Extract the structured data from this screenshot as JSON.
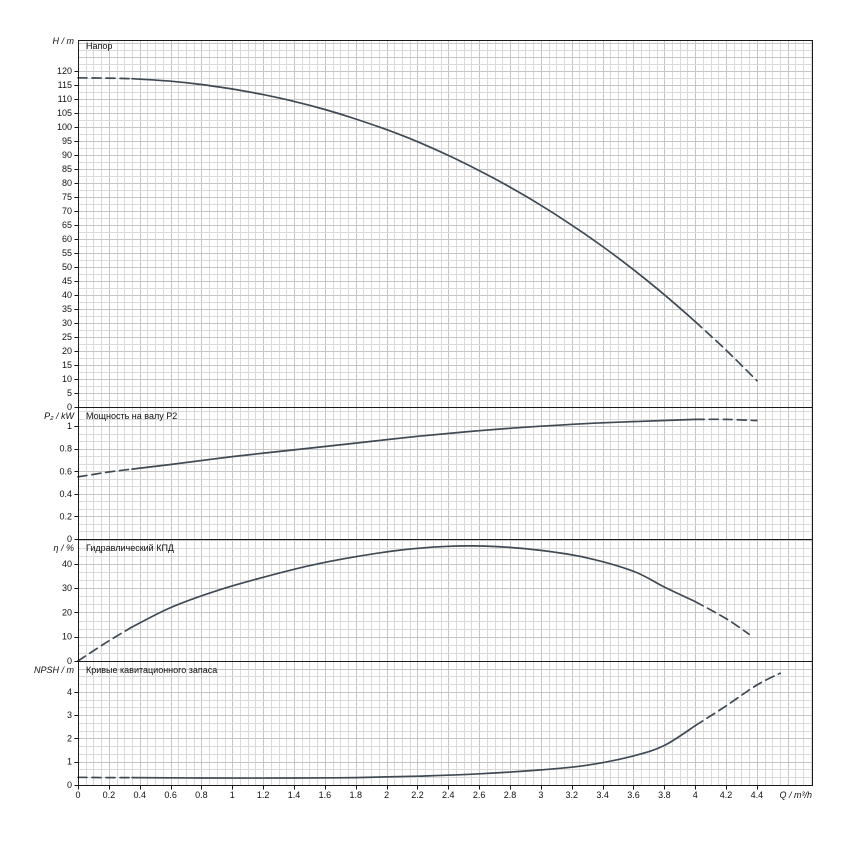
{
  "chart_data": {
    "type": "line",
    "xlabel": "Q / m³/h",
    "xlim": [
      0,
      4.757
    ],
    "x_minor_step": 0.05,
    "xtick_labels": [
      "0",
      "0.2",
      "0.4",
      "0.6",
      "0.8",
      "1",
      "1.2",
      "1.4",
      "1.6",
      "1.8",
      "2",
      "2.2",
      "2.4",
      "2.6",
      "2.8",
      "3",
      "3.2",
      "3.4",
      "3.6",
      "3.8",
      "4",
      "4.2",
      "4.4"
    ],
    "line_color": "#3f4a55",
    "grid_minor_color": "#dadada",
    "grid_major_color": "#c6c6c6",
    "axis_color": "#1a1a1a",
    "grid": true,
    "legend": false,
    "panels": [
      {
        "id": "head",
        "title": "Напор",
        "ylabel": "H / m",
        "ylim": [
          0,
          131
        ],
        "y_minor_step": 2.5,
        "ytick_labels": [
          "0",
          "5",
          "10",
          "15",
          "20",
          "25",
          "30",
          "35",
          "40",
          "45",
          "50",
          "55",
          "60",
          "65",
          "70",
          "75",
          "80",
          "85",
          "90",
          "95",
          "100",
          "105",
          "110",
          "115",
          "120"
        ],
        "series": [
          {
            "name": "H",
            "segments": [
              {
                "style": "dashed",
                "points": [
                  [
                    0,
                    117.5
                  ],
                  [
                    0.18,
                    117.4
                  ],
                  [
                    0.35,
                    117.2
                  ]
                ]
              },
              {
                "style": "solid",
                "points": [
                  [
                    0.35,
                    117.2
                  ],
                  [
                    0.6,
                    116.3
                  ],
                  [
                    0.8,
                    115.1
                  ],
                  [
                    1,
                    113.5
                  ],
                  [
                    1.2,
                    111.5
                  ],
                  [
                    1.4,
                    109.1
                  ],
                  [
                    1.6,
                    106.2
                  ],
                  [
                    1.8,
                    102.8
                  ],
                  [
                    2,
                    99
                  ],
                  [
                    2.2,
                    94.7
                  ],
                  [
                    2.4,
                    89.8
                  ],
                  [
                    2.6,
                    84.4
                  ],
                  [
                    2.8,
                    78.5
                  ],
                  [
                    3,
                    72
                  ],
                  [
                    3.2,
                    64.9
                  ],
                  [
                    3.4,
                    57.3
                  ],
                  [
                    3.6,
                    49
                  ],
                  [
                    3.8,
                    40.1
                  ],
                  [
                    4,
                    30.5
                  ]
                ]
              },
              {
                "style": "dashed",
                "points": [
                  [
                    4,
                    30.5
                  ],
                  [
                    4.2,
                    20.3
                  ],
                  [
                    4.4,
                    9.4
                  ]
                ]
              }
            ]
          }
        ]
      },
      {
        "id": "shaft-power",
        "title": "Мощность на валу P2",
        "ylabel": "P₂ / kW",
        "ylim": [
          0,
          1.17
        ],
        "y_minor_step": 0.0667,
        "ytick_labels": [
          "0",
          "0.2",
          "0.4",
          "0.6",
          "0.8",
          "1"
        ],
        "series": [
          {
            "name": "P2",
            "segments": [
              {
                "style": "dashed",
                "points": [
                  [
                    0,
                    0.55
                  ],
                  [
                    0.18,
                    0.59
                  ],
                  [
                    0.35,
                    0.62
                  ]
                ]
              },
              {
                "style": "solid",
                "points": [
                  [
                    0.35,
                    0.62
                  ],
                  [
                    0.6,
                    0.66
                  ],
                  [
                    1,
                    0.73
                  ],
                  [
                    1.4,
                    0.79
                  ],
                  [
                    1.8,
                    0.85
                  ],
                  [
                    2.2,
                    0.91
                  ],
                  [
                    2.6,
                    0.96
                  ],
                  [
                    3,
                    1.0
                  ],
                  [
                    3.4,
                    1.03
                  ],
                  [
                    3.8,
                    1.05
                  ],
                  [
                    4,
                    1.06
                  ]
                ]
              },
              {
                "style": "dashed",
                "points": [
                  [
                    4,
                    1.06
                  ],
                  [
                    4.2,
                    1.06
                  ],
                  [
                    4.4,
                    1.05
                  ]
                ]
              }
            ]
          }
        ]
      },
      {
        "id": "efficiency",
        "title": "Гидравлический КПД",
        "ylabel": "η / %",
        "ylim": [
          0,
          50.3
        ],
        "y_minor_step": 3.3333,
        "ytick_labels": [
          "0",
          "10",
          "20",
          "30",
          "40"
        ],
        "series": [
          {
            "name": "eta",
            "segments": [
              {
                "style": "dashed",
                "points": [
                  [
                    0,
                    0
                  ],
                  [
                    0.18,
                    7.5
                  ],
                  [
                    0.35,
                    14
                  ]
                ]
              },
              {
                "style": "solid",
                "points": [
                  [
                    0.35,
                    14
                  ],
                  [
                    0.6,
                    22
                  ],
                  [
                    0.9,
                    29
                  ],
                  [
                    1.2,
                    34.5
                  ],
                  [
                    1.5,
                    39.3
                  ],
                  [
                    1.8,
                    43
                  ],
                  [
                    2.1,
                    45.8
                  ],
                  [
                    2.4,
                    47.3
                  ],
                  [
                    2.7,
                    47.2
                  ],
                  [
                    3,
                    45.6
                  ],
                  [
                    3.3,
                    42.5
                  ],
                  [
                    3.6,
                    37
                  ],
                  [
                    3.8,
                    30.5
                  ],
                  [
                    4,
                    24.5
                  ]
                ]
              },
              {
                "style": "dashed",
                "points": [
                  [
                    4,
                    24.5
                  ],
                  [
                    4.2,
                    17.5
                  ],
                  [
                    4.35,
                    11
                  ]
                ]
              }
            ]
          }
        ]
      },
      {
        "id": "npsh",
        "title": "Кривые кавитационного запаса",
        "ylabel": "NPSH / m",
        "ylim": [
          0,
          5.33
        ],
        "y_minor_step": 0.3333,
        "ytick_labels": [
          "0",
          "1",
          "2",
          "3",
          "4"
        ],
        "series": [
          {
            "name": "NPSH",
            "segments": [
              {
                "style": "dashed",
                "points": [
                  [
                    0,
                    0.33
                  ],
                  [
                    0.18,
                    0.32
                  ],
                  [
                    0.35,
                    0.32
                  ]
                ]
              },
              {
                "style": "solid",
                "points": [
                  [
                    0.35,
                    0.32
                  ],
                  [
                    0.8,
                    0.3
                  ],
                  [
                    1.4,
                    0.3
                  ],
                  [
                    1.8,
                    0.32
                  ],
                  [
                    2.2,
                    0.38
                  ],
                  [
                    2.6,
                    0.48
                  ],
                  [
                    3,
                    0.65
                  ],
                  [
                    3.3,
                    0.85
                  ],
                  [
                    3.6,
                    1.25
                  ],
                  [
                    3.8,
                    1.7
                  ],
                  [
                    4,
                    2.55
                  ]
                ]
              },
              {
                "style": "dashed",
                "points": [
                  [
                    4,
                    2.55
                  ],
                  [
                    4.2,
                    3.4
                  ],
                  [
                    4.4,
                    4.3
                  ],
                  [
                    4.55,
                    4.8
                  ]
                ]
              }
            ]
          }
        ]
      }
    ]
  }
}
